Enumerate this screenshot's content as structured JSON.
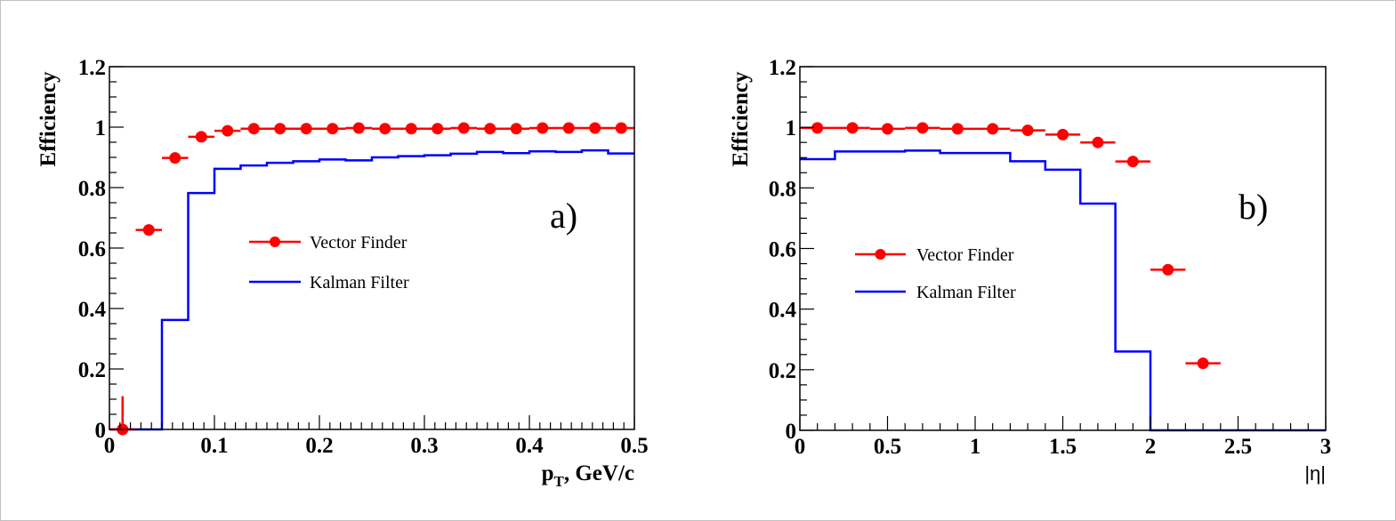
{
  "chart_data": [
    {
      "type": "line",
      "panel_label": "a)",
      "title": "",
      "xlabel": "p_T, GeV/c",
      "xlabel_main": "p",
      "xlabel_sub": "T",
      "xlabel_rest": ", GeV/c",
      "ylabel": "Efficiency",
      "xlim": [
        0,
        0.5
      ],
      "ylim": [
        0,
        1.2
      ],
      "xticks": [
        "0",
        "0.1",
        "0.2",
        "0.3",
        "0.4",
        "0.5"
      ],
      "xtick_values": [
        0,
        0.1,
        0.2,
        0.3,
        0.4,
        0.5
      ],
      "yticks": [
        "0",
        "0.2",
        "0.4",
        "0.6",
        "0.8",
        "1",
        "1.2"
      ],
      "ytick_values": [
        0,
        0.2,
        0.4,
        0.6,
        0.8,
        1.0,
        1.2
      ],
      "grid": false,
      "legend": {
        "placement": "center",
        "entries": [
          "Vector Finder",
          "Kalman Filter"
        ]
      },
      "series": [
        {
          "name": "Vector Finder",
          "style": "points-with-xerror",
          "color": "#ff0000",
          "bin_width": 0.025,
          "x": [
            0.0125,
            0.0375,
            0.0625,
            0.0875,
            0.1125,
            0.1375,
            0.1625,
            0.1875,
            0.2125,
            0.2375,
            0.2625,
            0.2875,
            0.3125,
            0.3375,
            0.3625,
            0.3875,
            0.4125,
            0.4375,
            0.4625,
            0.4875
          ],
          "values": [
            0.0,
            0.66,
            0.898,
            0.968,
            0.988,
            0.995,
            0.995,
            0.995,
            0.995,
            0.997,
            0.995,
            0.995,
            0.995,
            0.997,
            0.995,
            0.995,
            0.997,
            0.997,
            0.997,
            0.997
          ],
          "yerr_up": [
            0.11,
            0.015,
            0.008,
            0.006,
            0.005,
            0.004,
            0.004,
            0.004,
            0.004,
            0.003,
            0.004,
            0.004,
            0.004,
            0.003,
            0.004,
            0.004,
            0.003,
            0.003,
            0.003,
            0.003
          ]
        },
        {
          "name": "Kalman Filter",
          "style": "step",
          "color": "#0000ff",
          "bin_edges": [
            0,
            0.025,
            0.05,
            0.075,
            0.1,
            0.125,
            0.15,
            0.175,
            0.2,
            0.225,
            0.25,
            0.275,
            0.3,
            0.325,
            0.35,
            0.375,
            0.4,
            0.425,
            0.45,
            0.475,
            0.5
          ],
          "values": [
            0.0,
            0.0,
            0.362,
            0.782,
            0.862,
            0.873,
            0.882,
            0.887,
            0.893,
            0.89,
            0.9,
            0.904,
            0.907,
            0.912,
            0.918,
            0.914,
            0.92,
            0.918,
            0.923,
            0.913
          ]
        }
      ]
    },
    {
      "type": "line",
      "panel_label": "b)",
      "title": "",
      "xlabel": "|η|",
      "ylabel": "Efficiency",
      "xlim": [
        0,
        3
      ],
      "ylim": [
        0,
        1.2
      ],
      "xticks": [
        "0",
        "0.5",
        "1",
        "1.5",
        "2",
        "2.5",
        "3"
      ],
      "xtick_values": [
        0,
        0.5,
        1,
        1.5,
        2,
        2.5,
        3
      ],
      "yticks": [
        "0",
        "0.2",
        "0.4",
        "0.6",
        "0.8",
        "1",
        "1.2"
      ],
      "ytick_values": [
        0,
        0.2,
        0.4,
        0.6,
        0.8,
        1.0,
        1.2
      ],
      "grid": false,
      "legend": {
        "placement": "center-left",
        "entries": [
          "Vector Finder",
          "Kalman Filter"
        ]
      },
      "series": [
        {
          "name": "Vector Finder",
          "style": "points-with-xerror",
          "color": "#ff0000",
          "bin_width": 0.2,
          "x": [
            0.1,
            0.3,
            0.5,
            0.7,
            0.9,
            1.1,
            1.3,
            1.5,
            1.7,
            1.9,
            2.1,
            2.3
          ],
          "values": [
            0.998,
            0.998,
            0.995,
            0.998,
            0.995,
            0.995,
            0.99,
            0.976,
            0.95,
            0.887,
            0.53,
            0.221
          ],
          "yerr_up": [
            0.002,
            0.002,
            0.003,
            0.002,
            0.003,
            0.003,
            0.004,
            0.005,
            0.006,
            0.008,
            0.01,
            0.01
          ]
        },
        {
          "name": "Kalman Filter",
          "style": "step",
          "color": "#0000ff",
          "bin_edges": [
            0,
            0.2,
            0.4,
            0.6,
            0.8,
            1.0,
            1.2,
            1.4,
            1.6,
            1.8,
            2.0,
            2.2,
            2.4,
            2.6,
            2.8,
            3.0
          ],
          "values": [
            0.895,
            0.92,
            0.92,
            0.923,
            0.915,
            0.915,
            0.888,
            0.86,
            0.748,
            0.26,
            0.0,
            0.0,
            0.0,
            0.0,
            0.0
          ]
        }
      ]
    }
  ]
}
